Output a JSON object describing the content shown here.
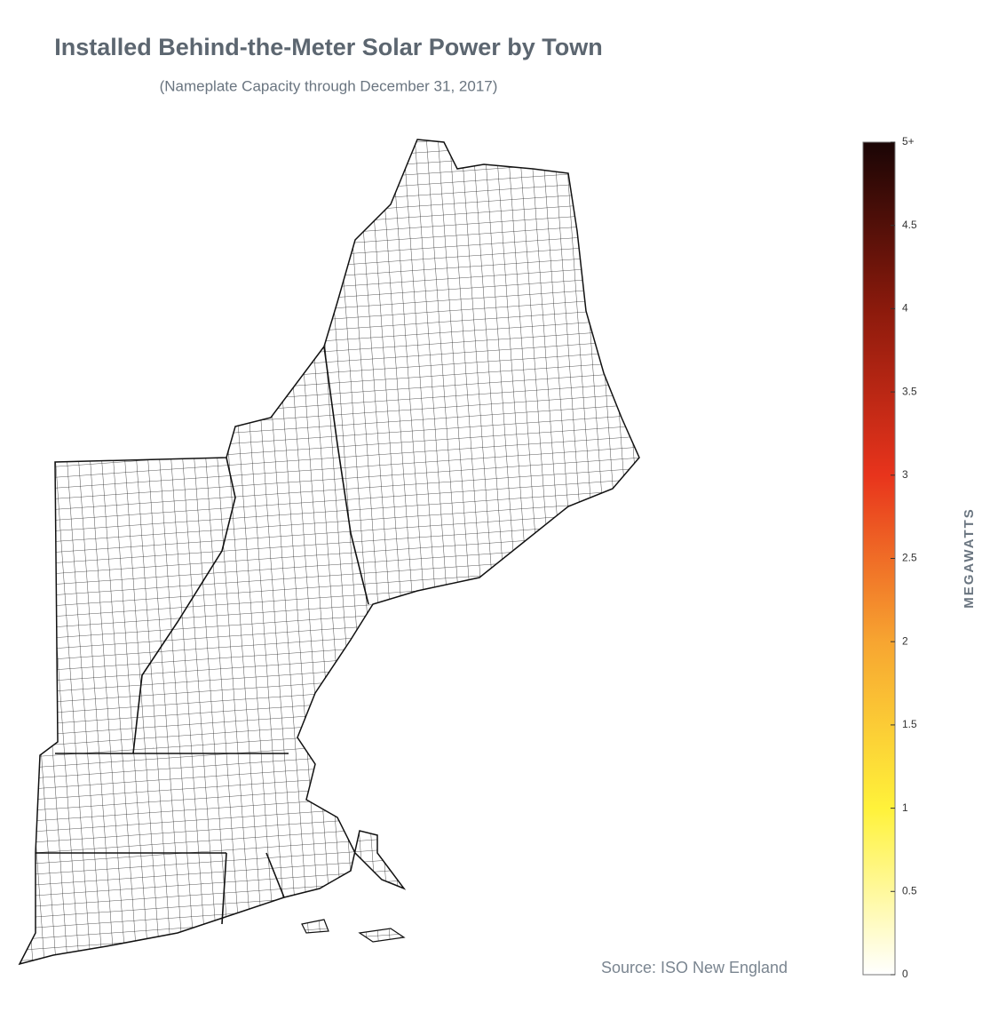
{
  "title": "Installed Behind-the-Meter Solar Power by Town",
  "subtitle": "(Nameplate Capacity through December 31, 2017)",
  "source": "Source: ISO New England",
  "colorbar": {
    "label": "MEGAWATTS",
    "range": [
      0,
      5
    ],
    "ticks": [
      0,
      0.5,
      1,
      1.5,
      2,
      2.5,
      3,
      3.5,
      4,
      4.5,
      {
        "value": 5,
        "label": "5+"
      }
    ],
    "colorscale": [
      [
        0,
        "#ffffff"
      ],
      [
        1,
        "#fff23a"
      ],
      [
        2,
        "#f7a531"
      ],
      [
        3,
        "#e8341c"
      ],
      [
        4,
        "#8b1a0c"
      ],
      [
        5,
        "#1a0505"
      ]
    ]
  }
}
